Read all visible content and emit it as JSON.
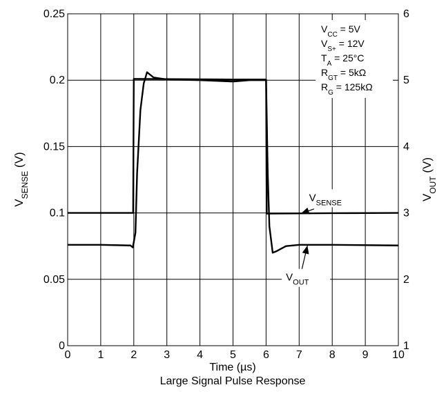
{
  "chart_data": {
    "type": "line",
    "title": "Large Signal Pulse Response",
    "xlabel": "Time (µs)",
    "ylabel_left": {
      "main": "V",
      "sub": "SENSE",
      "unit": " (V)"
    },
    "ylabel_right": {
      "main": "V",
      "sub": "OUT",
      "unit": " (V)"
    },
    "xlim": [
      0,
      10
    ],
    "ylim_left": [
      0,
      0.25
    ],
    "ylim_right": [
      1,
      6
    ],
    "grid": true,
    "x_ticks": [
      "0",
      "1",
      "2",
      "3",
      "4",
      "5",
      "6",
      "7",
      "8",
      "9",
      "10"
    ],
    "y_left_ticks": [
      "0",
      "0.05",
      "0.1",
      "0.15",
      "0.2",
      "0.25"
    ],
    "y_right_ticks": [
      "1",
      "2",
      "3",
      "4",
      "5",
      "6"
    ],
    "conditions": [
      {
        "main": "V",
        "sub": "CC",
        "rest": " = 5V"
      },
      {
        "main": "V",
        "sub": "S+",
        "rest": " = 12V"
      },
      {
        "main": "T",
        "sub": "A",
        "rest": " = 25°C"
      },
      {
        "main": "R",
        "sub": "GT",
        "rest": " = 5kΩ"
      },
      {
        "main": "R",
        "sub": "G",
        "rest": " = 125kΩ"
      }
    ],
    "series": [
      {
        "name": {
          "main": "V",
          "sub": "SENSE"
        },
        "axis": "left",
        "points": [
          [
            0,
            0.1
          ],
          [
            1.98,
            0.1
          ],
          [
            2.0,
            0.201
          ],
          [
            5.0,
            0.2005
          ],
          [
            6.0,
            0.2005
          ],
          [
            6.02,
            0.0995
          ],
          [
            8.0,
            0.0998
          ],
          [
            10.0,
            0.1
          ]
        ]
      },
      {
        "name": {
          "main": "V",
          "sub": "OUT"
        },
        "axis": "right",
        "points": [
          [
            0,
            2.52
          ],
          [
            1.0,
            2.52
          ],
          [
            1.9,
            2.51
          ],
          [
            1.97,
            2.48
          ],
          [
            2.05,
            2.7
          ],
          [
            2.1,
            3.6
          ],
          [
            2.2,
            4.55
          ],
          [
            2.3,
            4.95
          ],
          [
            2.4,
            5.12
          ],
          [
            2.5,
            5.08
          ],
          [
            2.6,
            5.04
          ],
          [
            3.0,
            5.01
          ],
          [
            4.0,
            5.0
          ],
          [
            5.0,
            4.98
          ],
          [
            5.5,
            5.0
          ],
          [
            6.0,
            5.0
          ],
          [
            6.05,
            3.6
          ],
          [
            6.1,
            2.8
          ],
          [
            6.2,
            2.4
          ],
          [
            6.3,
            2.42
          ],
          [
            6.6,
            2.5
          ],
          [
            7.0,
            2.52
          ],
          [
            8.0,
            2.52
          ],
          [
            10.0,
            2.51
          ]
        ]
      }
    ],
    "annotations": [
      {
        "label": {
          "main": "V",
          "sub": "SENSE"
        },
        "text_at": [
          7.3,
          0.109
        ],
        "arrow_from": [
          7.45,
          0.103
        ],
        "arrow_to": [
          7.05,
          0.0995
        ]
      },
      {
        "label": {
          "main": "V",
          "sub": "OUT"
        },
        "text_at": [
          6.6,
          0.049
        ],
        "arrow_from": [
          7.05,
          0.054
        ],
        "arrow_to": [
          7.25,
          0.0755
        ]
      }
    ]
  }
}
